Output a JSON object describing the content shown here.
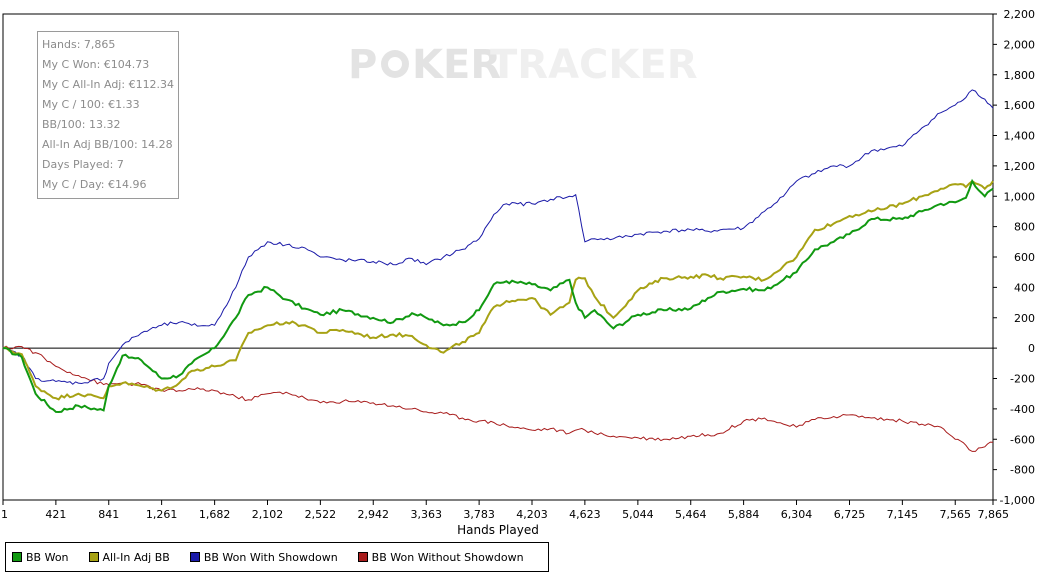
{
  "watermark": {
    "part1": "P",
    "part2": "KER",
    "part3": "TRACKER"
  },
  "stats_box": {
    "lines": [
      "Hands: 7,865",
      "My C Won: €104.73",
      "My C All-In Adj: €112.34",
      "My C / 100: €1.33",
      "BB/100: 13.32",
      "All-In Adj BB/100: 14.28",
      "Days Played: 7",
      "My C / Day: €14.96"
    ]
  },
  "chart_data": {
    "type": "line",
    "title": "",
    "xlabel": "Hands Played",
    "ylabel": "",
    "xlim": [
      1,
      7865
    ],
    "ylim": [
      -1000,
      2200
    ],
    "x_ticks": [
      "1",
      "421",
      "841",
      "1,261",
      "1,682",
      "2,102",
      "2,522",
      "2,942",
      "3,363",
      "3,783",
      "4,203",
      "4,623",
      "5,044",
      "5,464",
      "5,884",
      "6,304",
      "6,725",
      "7,145",
      "7,565",
      "7,865"
    ],
    "x_tick_values": [
      1,
      421,
      841,
      1261,
      1682,
      2102,
      2522,
      2942,
      3363,
      3783,
      4203,
      4623,
      5044,
      5464,
      5884,
      6304,
      6725,
      7145,
      7565,
      7865
    ],
    "y_ticks": [
      "2,200",
      "2,000",
      "1,800",
      "1,600",
      "1,400",
      "1,200",
      "1,000",
      "800",
      "600",
      "400",
      "200",
      "0",
      "-200",
      "-400",
      "-600",
      "-800",
      "-1,000"
    ],
    "y_tick_values": [
      2200,
      2000,
      1800,
      1600,
      1400,
      1200,
      1000,
      800,
      600,
      400,
      200,
      0,
      -200,
      -400,
      -600,
      -800,
      -1000
    ],
    "legend_position": "bottom-left",
    "series": [
      {
        "name": "BB Won",
        "color": "#119911",
        "x": [
          1,
          150,
          260,
          421,
          600,
          800,
          841,
          950,
          1100,
          1261,
          1400,
          1500,
          1682,
          1850,
          1950,
          2102,
          2250,
          2400,
          2522,
          2700,
          2942,
          3100,
          3250,
          3363,
          3500,
          3650,
          3783,
          3900,
          4000,
          4203,
          4350,
          4500,
          4550,
          4623,
          4700,
          4850,
          5044,
          5250,
          5464,
          5600,
          5700,
          5884,
          6050,
          6200,
          6304,
          6450,
          6600,
          6725,
          6900,
          7145,
          7300,
          7450,
          7565,
          7650,
          7700,
          7800,
          7865
        ],
        "y": [
          0,
          -60,
          -300,
          -420,
          -380,
          -410,
          -250,
          -50,
          -80,
          -200,
          -180,
          -100,
          0,
          200,
          350,
          400,
          320,
          260,
          220,
          250,
          200,
          170,
          230,
          200,
          150,
          170,
          250,
          420,
          440,
          420,
          380,
          450,
          300,
          200,
          250,
          130,
          220,
          250,
          260,
          330,
          370,
          390,
          380,
          450,
          500,
          650,
          700,
          750,
          850,
          850,
          900,
          950,
          960,
          990,
          1100,
          1000,
          1050
        ]
      },
      {
        "name": "All-In Adj BB",
        "color": "#a7a214",
        "x": [
          1,
          150,
          260,
          421,
          600,
          800,
          841,
          950,
          1100,
          1261,
          1400,
          1500,
          1682,
          1850,
          1950,
          2102,
          2250,
          2400,
          2522,
          2700,
          2942,
          3100,
          3250,
          3363,
          3500,
          3650,
          3783,
          3900,
          4000,
          4203,
          4350,
          4500,
          4550,
          4623,
          4700,
          4850,
          5044,
          5250,
          5464,
          5600,
          5700,
          5884,
          6050,
          6200,
          6304,
          6450,
          6600,
          6725,
          6900,
          7145,
          7300,
          7450,
          7565,
          7650,
          7700,
          7800,
          7865
        ],
        "y": [
          0,
          -40,
          -250,
          -330,
          -300,
          -330,
          -250,
          -230,
          -250,
          -280,
          -230,
          -150,
          -120,
          -80,
          100,
          150,
          170,
          150,
          100,
          120,
          70,
          90,
          80,
          20,
          -30,
          40,
          100,
          270,
          310,
          330,
          220,
          300,
          450,
          460,
          340,
          200,
          380,
          460,
          470,
          480,
          460,
          470,
          450,
          540,
          600,
          780,
          820,
          870,
          900,
          950,
          1000,
          1050,
          1080,
          1060,
          1100,
          1050,
          1100
        ]
      },
      {
        "name": "BB Won With Showdown",
        "color": "#1a1aa8",
        "x": [
          1,
          150,
          260,
          421,
          600,
          800,
          841,
          950,
          1100,
          1261,
          1400,
          1500,
          1682,
          1850,
          1950,
          2102,
          2250,
          2400,
          2522,
          2700,
          2942,
          3100,
          3250,
          3363,
          3500,
          3650,
          3783,
          3900,
          4000,
          4203,
          4350,
          4500,
          4550,
          4623,
          4700,
          4850,
          5044,
          5250,
          5464,
          5600,
          5700,
          5884,
          6050,
          6200,
          6304,
          6450,
          6600,
          6725,
          6900,
          7145,
          7300,
          7450,
          7565,
          7650,
          7700,
          7800,
          7865
        ],
        "y": [
          0,
          -50,
          -200,
          -220,
          -230,
          -200,
          -100,
          20,
          100,
          150,
          170,
          150,
          150,
          400,
          600,
          700,
          680,
          660,
          600,
          580,
          570,
          550,
          590,
          550,
          600,
          650,
          720,
          880,
          950,
          950,
          980,
          1000,
          1010,
          700,
          720,
          720,
          750,
          770,
          780,
          770,
          780,
          790,
          900,
          1000,
          1100,
          1150,
          1200,
          1200,
          1300,
          1330,
          1450,
          1550,
          1600,
          1650,
          1700,
          1640,
          1580
        ]
      },
      {
        "name": "BB Won Without Showdown",
        "color": "#a81c1c",
        "x": [
          1,
          150,
          260,
          421,
          600,
          800,
          841,
          950,
          1100,
          1261,
          1400,
          1500,
          1682,
          1850,
          1950,
          2102,
          2250,
          2400,
          2522,
          2700,
          2942,
          3100,
          3250,
          3363,
          3500,
          3650,
          3783,
          3900,
          4000,
          4203,
          4350,
          4500,
          4550,
          4623,
          4700,
          4850,
          5044,
          5250,
          5464,
          5600,
          5700,
          5884,
          6050,
          6200,
          6304,
          6450,
          6600,
          6725,
          6900,
          7145,
          7300,
          7450,
          7565,
          7650,
          7700,
          7800,
          7865
        ],
        "y": [
          0,
          10,
          -30,
          -120,
          -180,
          -240,
          -240,
          -230,
          -240,
          -280,
          -280,
          -270,
          -280,
          -320,
          -340,
          -300,
          -290,
          -330,
          -360,
          -350,
          -360,
          -380,
          -400,
          -420,
          -430,
          -460,
          -480,
          -490,
          -510,
          -540,
          -530,
          -560,
          -540,
          -540,
          -560,
          -580,
          -590,
          -600,
          -580,
          -570,
          -560,
          -480,
          -460,
          -500,
          -520,
          -470,
          -450,
          -440,
          -460,
          -480,
          -500,
          -520,
          -600,
          -640,
          -680,
          -650,
          -620
        ]
      }
    ]
  }
}
